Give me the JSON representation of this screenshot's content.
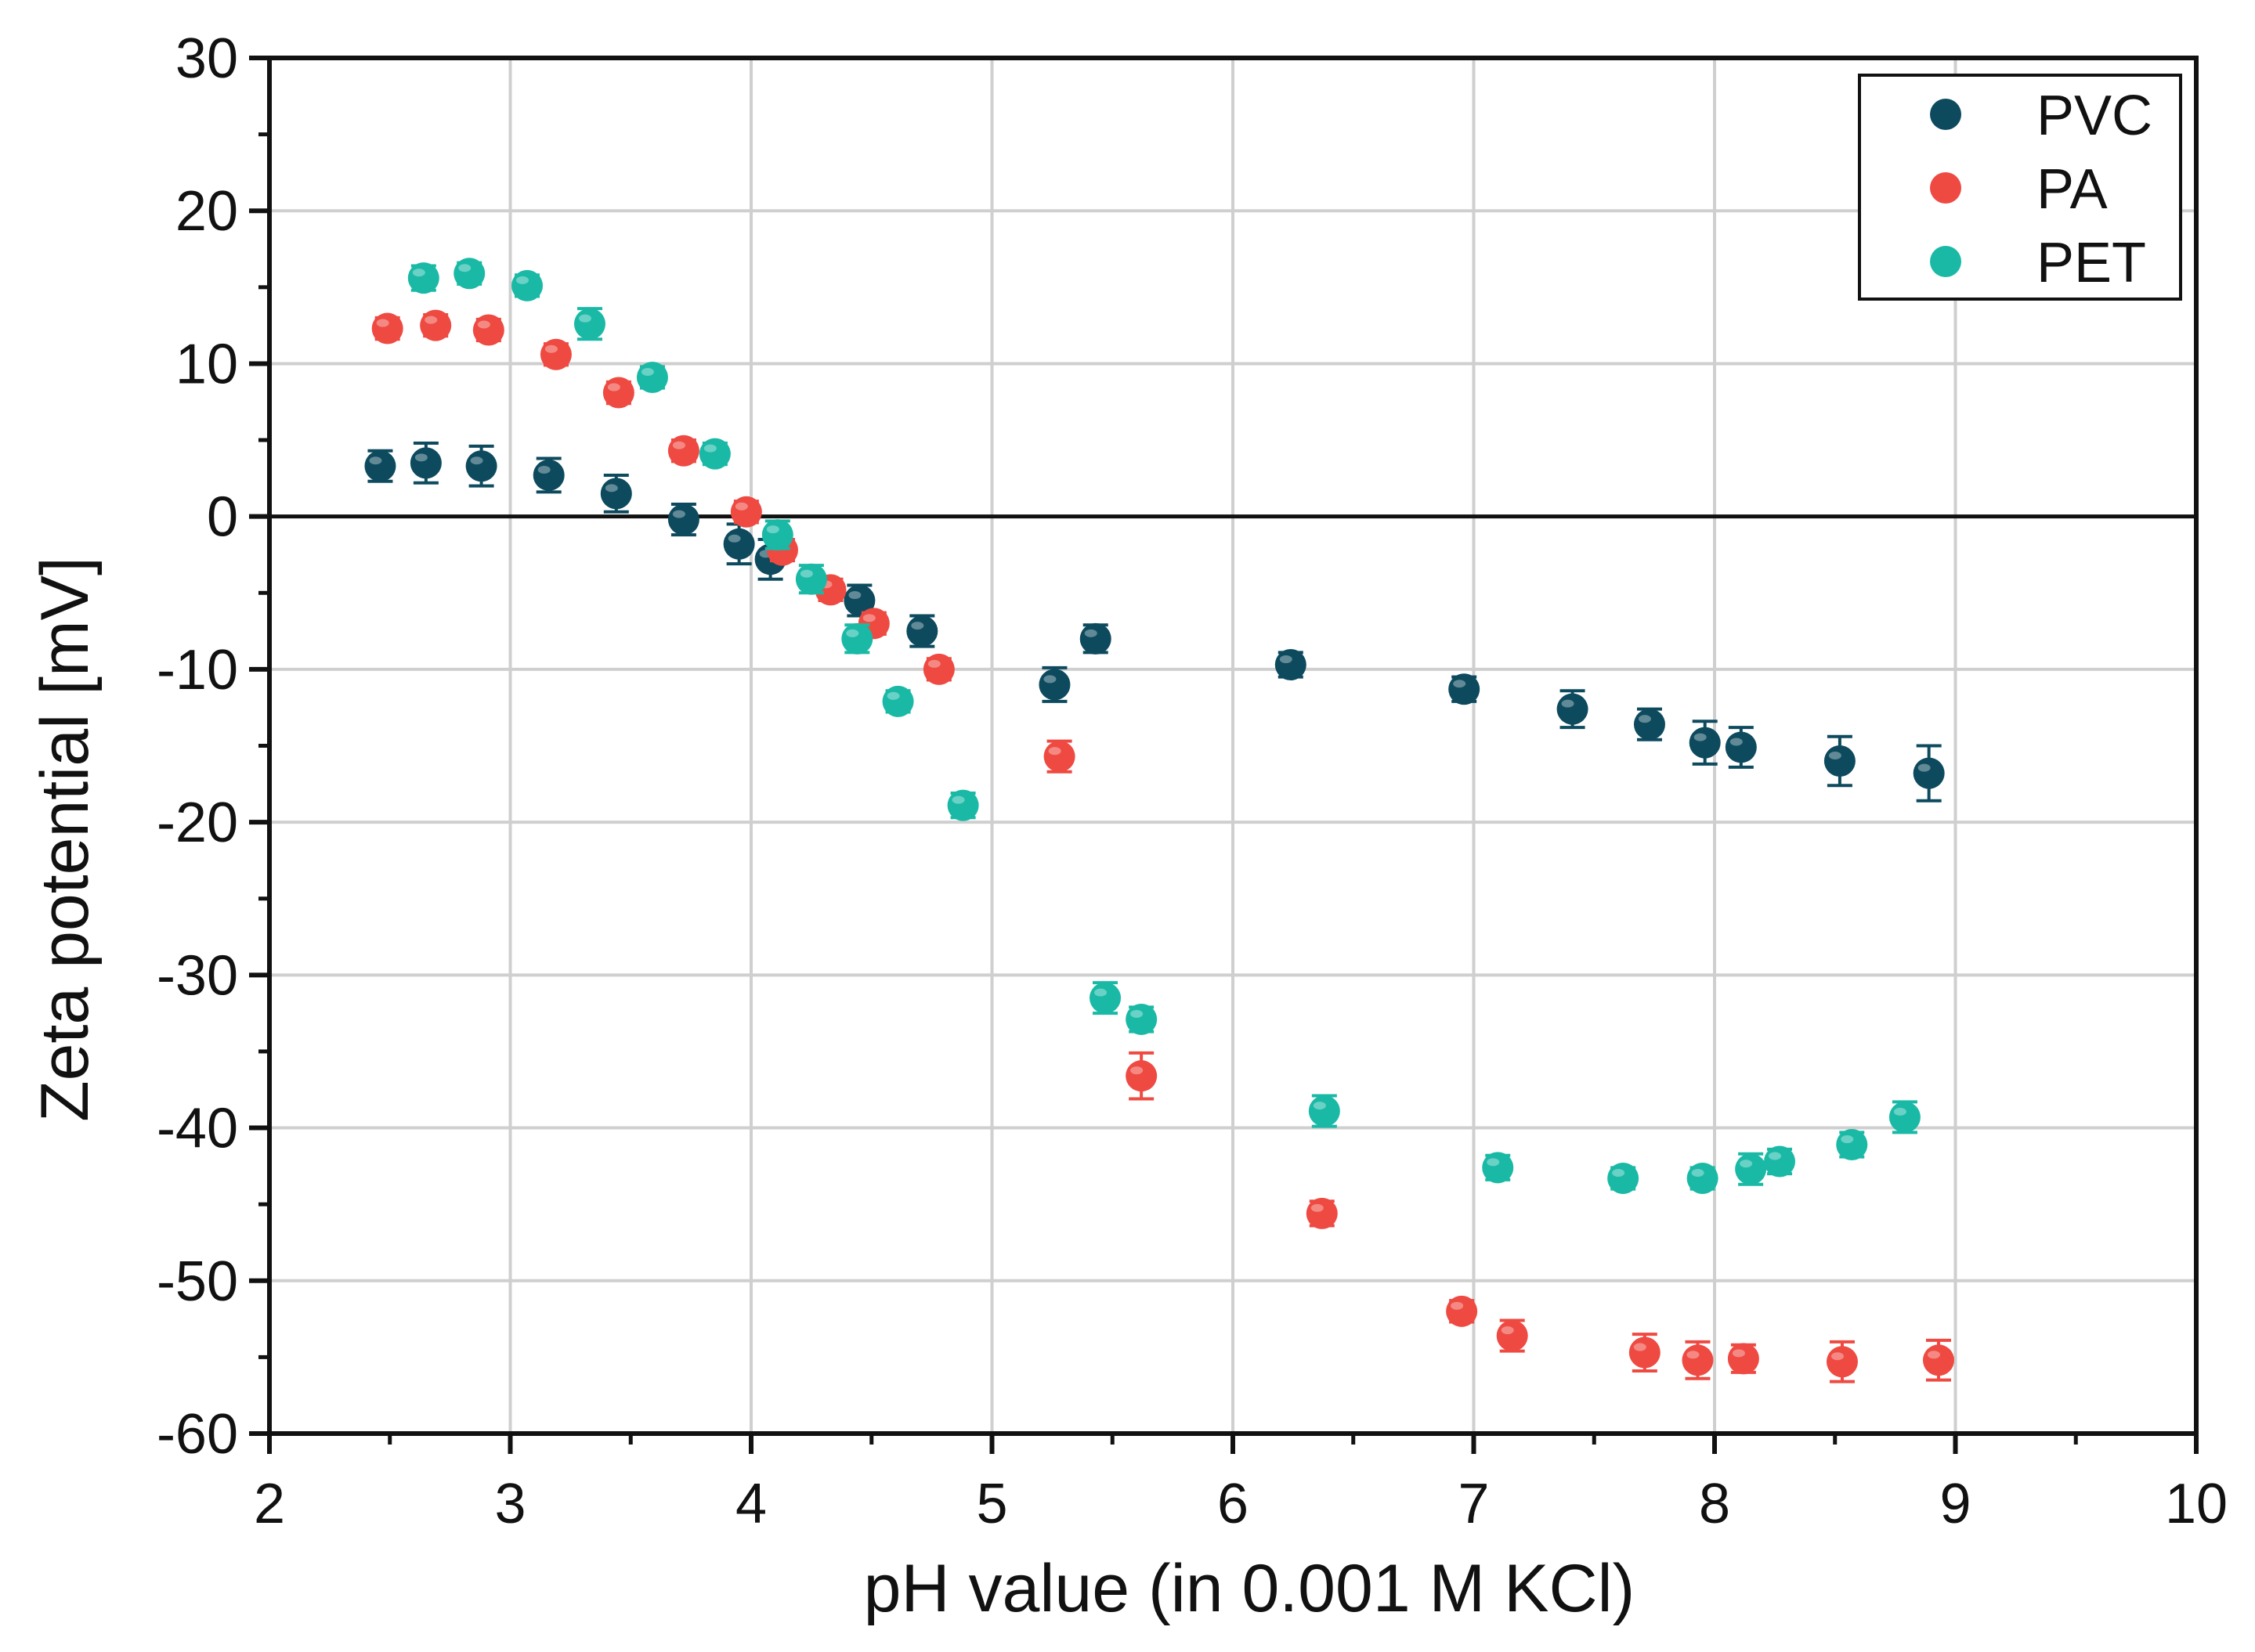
{
  "colors": {
    "PVC": "#0d4a5e",
    "PA": "#ee4a42",
    "PET": "#1ab9a6",
    "grid": "#cfcfcf",
    "axis": "#111111"
  },
  "chart_data": {
    "type": "scatter",
    "title": "",
    "xlabel": "pH value (in 0.001 M KCl)",
    "ylabel": "Zeta potential [mV]",
    "xlim": [
      2,
      10
    ],
    "ylim": [
      -60,
      30
    ],
    "xticks": [
      2,
      3,
      4,
      5,
      6,
      7,
      8,
      9,
      10
    ],
    "yticks": [
      30,
      20,
      10,
      0,
      -10,
      -20,
      -30,
      -40,
      -50,
      -60
    ],
    "grid": true,
    "zero_line": true,
    "legend_position": "top-right",
    "series": [
      {
        "name": "PVC",
        "color": "#0d4a5e",
        "x": [
          2.46,
          2.65,
          2.88,
          3.16,
          3.44,
          3.72,
          3.95,
          4.08,
          4.45,
          4.71,
          5.26,
          5.43,
          6.24,
          6.96,
          7.41,
          7.73,
          7.96,
          8.11,
          8.52,
          8.89
        ],
        "y": [
          3.3,
          3.5,
          3.3,
          2.7,
          1.5,
          -0.2,
          -1.8,
          -2.8,
          -5.5,
          -7.5,
          -11.0,
          -8.0,
          -9.7,
          -11.3,
          -12.6,
          -13.6,
          -14.8,
          -15.1,
          -16.0,
          -16.8
        ],
        "err": [
          1.0,
          1.3,
          1.3,
          1.1,
          1.2,
          1.0,
          1.3,
          1.3,
          1.0,
          1.0,
          1.1,
          0.9,
          0.8,
          0.8,
          1.2,
          1.0,
          1.4,
          1.3,
          1.6,
          1.8
        ]
      },
      {
        "name": "PA",
        "color": "#ee4a42",
        "x": [
          2.49,
          2.69,
          2.91,
          3.19,
          3.45,
          3.72,
          3.98,
          4.13,
          4.33,
          4.51,
          4.78,
          5.28,
          5.62,
          6.37,
          6.95,
          7.16,
          7.71,
          7.93,
          8.12,
          8.53,
          8.93
        ],
        "y": [
          12.3,
          12.5,
          12.2,
          10.6,
          8.1,
          4.3,
          0.3,
          -2.2,
          -4.8,
          -7.0,
          -10.0,
          -15.7,
          -36.6,
          -45.6,
          -52.0,
          -53.6,
          -54.7,
          -55.2,
          -55.1,
          -55.3,
          -55.2
        ],
        "err": [
          0.7,
          0.7,
          0.7,
          0.7,
          0.7,
          0.7,
          0.7,
          0.7,
          0.7,
          0.7,
          0.7,
          1.0,
          1.5,
          0.8,
          0.7,
          1.0,
          1.2,
          1.2,
          0.9,
          1.3,
          1.3
        ]
      },
      {
        "name": "PET",
        "color": "#1ab9a6",
        "x": [
          2.64,
          2.83,
          3.07,
          3.33,
          3.59,
          3.85,
          4.11,
          4.25,
          4.44,
          4.61,
          4.88,
          5.47,
          5.62,
          6.38,
          7.1,
          7.62,
          7.95,
          8.15,
          8.27,
          8.57,
          8.79
        ],
        "y": [
          15.6,
          15.9,
          15.1,
          12.6,
          9.1,
          4.1,
          -1.2,
          -4.1,
          -8.0,
          -12.1,
          -18.9,
          -31.5,
          -32.9,
          -38.9,
          -42.6,
          -43.3,
          -43.3,
          -42.7,
          -42.2,
          -41.1,
          -39.3
        ],
        "err": [
          0.8,
          0.7,
          0.7,
          1.0,
          0.7,
          0.7,
          0.9,
          0.9,
          0.9,
          0.7,
          0.8,
          1.0,
          0.8,
          1.0,
          0.8,
          0.7,
          0.7,
          1.0,
          0.8,
          0.8,
          1.0
        ]
      }
    ]
  }
}
